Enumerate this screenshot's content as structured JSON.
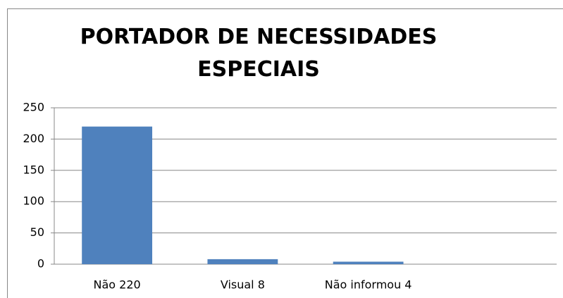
{
  "chart_data": {
    "type": "bar",
    "title": "PORTADOR DE NECESSIDADES ESPECIAIS",
    "categories": [
      "Não 220",
      "Visual 8",
      "Não informou 4",
      null
    ],
    "values": [
      220,
      8,
      4,
      null
    ],
    "color": "#4f81bd",
    "ylim": [
      0,
      250
    ],
    "yticks": [
      0,
      50,
      100,
      150,
      200,
      250
    ],
    "grid": true
  }
}
